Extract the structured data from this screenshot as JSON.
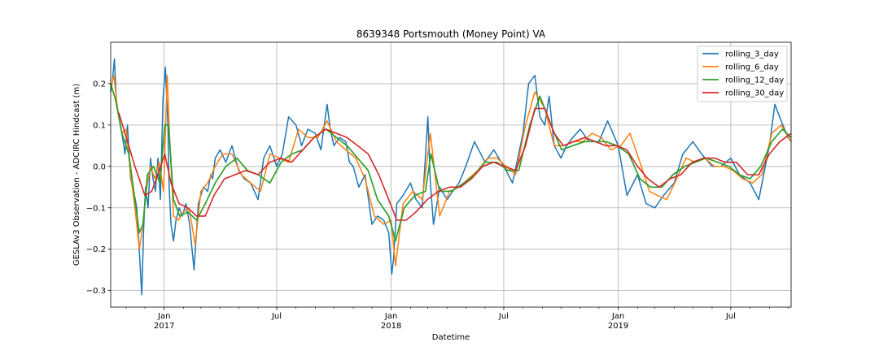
{
  "chart_data": {
    "type": "line",
    "title": "8639348 Portsmouth (Money Point) VA",
    "xlabel": "Datetime",
    "ylabel": "GESLAv3 Observation - ADCIRC Hindcast (m)",
    "grid": true,
    "legend_position": "top-right",
    "xlim": [
      "2016-10-07",
      "2019-10-06"
    ],
    "ylim": [
      -0.34,
      0.3
    ],
    "yticks": [
      -0.3,
      -0.2,
      -0.1,
      0.0,
      0.1,
      0.2
    ],
    "ytick_labels": [
      "−0.3",
      "−0.2",
      "−0.1",
      "0.0",
      "0.1",
      "0.2"
    ],
    "xticks": [
      {
        "date": "2017-01-01",
        "label": "Jan",
        "sublabel": "2017"
      },
      {
        "date": "2017-07-01",
        "label": "Jul",
        "sublabel": ""
      },
      {
        "date": "2018-01-01",
        "label": "Jan",
        "sublabel": "2018"
      },
      {
        "date": "2018-07-01",
        "label": "Jul",
        "sublabel": ""
      },
      {
        "date": "2019-01-01",
        "label": "Jan",
        "sublabel": "2019"
      },
      {
        "date": "2019-07-01",
        "label": "Jul",
        "sublabel": ""
      }
    ],
    "series": [
      {
        "name": "rolling_3_day",
        "color": "#1f77b4",
        "x": [
          "2016-10-07",
          "2016-10-10",
          "2016-10-13",
          "2016-10-16",
          "2016-10-20",
          "2016-10-25",
          "2016-10-30",
          "2016-11-03",
          "2016-11-08",
          "2016-11-13",
          "2016-11-18",
          "2016-11-23",
          "2016-11-26",
          "2016-11-29",
          "2016-12-02",
          "2016-12-06",
          "2016-12-10",
          "2016-12-14",
          "2016-12-18",
          "2016-12-22",
          "2016-12-26",
          "2016-12-30",
          "2017-01-03",
          "2017-01-07",
          "2017-01-09",
          "2017-01-12",
          "2017-01-16",
          "2017-01-20",
          "2017-01-25",
          "2017-01-30",
          "2017-02-05",
          "2017-02-11",
          "2017-02-18",
          "2017-02-25",
          "2017-03-05",
          "2017-03-12",
          "2017-03-17",
          "2017-03-20",
          "2017-03-24",
          "2017-04-01",
          "2017-04-10",
          "2017-04-20",
          "2017-05-01",
          "2017-05-10",
          "2017-05-20",
          "2017-06-01",
          "2017-06-10",
          "2017-06-20",
          "2017-07-01",
          "2017-07-10",
          "2017-07-20",
          "2017-08-01",
          "2017-08-10",
          "2017-08-20",
          "2017-09-01",
          "2017-09-10",
          "2017-09-20",
          "2017-09-25",
          "2017-10-01",
          "2017-10-10",
          "2017-10-20",
          "2017-10-26",
          "2017-11-01",
          "2017-11-10",
          "2017-11-20",
          "2017-12-01",
          "2017-12-10",
          "2017-12-20",
          "2017-12-28",
          "2018-01-02",
          "2018-01-05",
          "2018-01-10",
          "2018-01-20",
          "2018-02-01",
          "2018-02-10",
          "2018-02-20",
          "2018-03-01",
          "2018-03-05",
          "2018-03-10",
          "2018-03-20",
          "2018-04-01",
          "2018-04-10",
          "2018-04-20",
          "2018-05-01",
          "2018-05-15",
          "2018-06-01",
          "2018-06-15",
          "2018-07-01",
          "2018-07-15",
          "2018-08-01",
          "2018-08-10",
          "2018-08-20",
          "2018-08-28",
          "2018-09-05",
          "2018-09-12",
          "2018-09-20",
          "2018-10-01",
          "2018-10-10",
          "2018-10-20",
          "2018-11-01",
          "2018-11-15",
          "2018-12-01",
          "2018-12-15",
          "2019-01-01",
          "2019-01-15",
          "2019-02-01",
          "2019-02-15",
          "2019-03-01",
          "2019-03-15",
          "2019-04-01",
          "2019-04-15",
          "2019-05-01",
          "2019-05-15",
          "2019-06-01",
          "2019-06-15",
          "2019-07-01",
          "2019-07-15",
          "2019-08-01",
          "2019-08-15",
          "2019-09-01",
          "2019-09-10",
          "2019-09-20",
          "2019-10-01",
          "2019-10-06"
        ],
        "values": [
          0.18,
          0.21,
          0.26,
          0.16,
          0.12,
          0.08,
          0.03,
          0.1,
          -0.03,
          -0.06,
          -0.1,
          -0.23,
          -0.31,
          -0.15,
          -0.05,
          -0.1,
          0.02,
          -0.03,
          -0.06,
          0.02,
          -0.08,
          0.16,
          0.24,
          0.1,
          -0.05,
          -0.14,
          -0.18,
          -0.13,
          -0.1,
          -0.12,
          -0.09,
          -0.14,
          -0.25,
          -0.09,
          -0.05,
          -0.06,
          -0.02,
          -0.03,
          0.02,
          0.04,
          0.01,
          0.05,
          -0.01,
          -0.03,
          -0.04,
          -0.08,
          0.02,
          0.05,
          0.0,
          0.03,
          0.12,
          0.1,
          0.05,
          0.09,
          0.08,
          0.04,
          0.15,
          0.09,
          0.05,
          0.07,
          0.06,
          0.01,
          0.0,
          -0.05,
          -0.02,
          -0.14,
          -0.12,
          -0.13,
          -0.16,
          -0.26,
          -0.22,
          -0.09,
          -0.07,
          -0.04,
          -0.08,
          -0.1,
          0.12,
          -0.04,
          -0.14,
          -0.05,
          -0.08,
          -0.06,
          -0.04,
          0.0,
          0.06,
          0.01,
          0.04,
          0.0,
          -0.04,
          0.08,
          0.2,
          0.22,
          0.12,
          0.1,
          0.17,
          0.05,
          0.02,
          0.05,
          0.07,
          0.09,
          0.06,
          0.06,
          0.11,
          0.05,
          -0.07,
          -0.02,
          -0.09,
          -0.1,
          -0.07,
          -0.04,
          0.03,
          0.06,
          0.03,
          0.0,
          0.0,
          0.02,
          -0.02,
          -0.04,
          -0.08,
          0.05,
          0.15,
          0.11,
          0.07,
          0.06
        ]
      },
      {
        "name": "rolling_6_day",
        "color": "#ff7f0e",
        "x": [
          "2016-10-07",
          "2016-10-12",
          "2016-10-18",
          "2016-10-25",
          "2016-11-01",
          "2016-11-08",
          "2016-11-15",
          "2016-11-22",
          "2016-11-27",
          "2016-12-03",
          "2016-12-10",
          "2016-12-17",
          "2016-12-24",
          "2016-12-31",
          "2017-01-06",
          "2017-01-10",
          "2017-01-16",
          "2017-01-24",
          "2017-02-01",
          "2017-02-10",
          "2017-02-20",
          "2017-03-01",
          "2017-03-12",
          "2017-03-24",
          "2017-04-05",
          "2017-04-20",
          "2017-05-05",
          "2017-05-20",
          "2017-06-05",
          "2017-06-20",
          "2017-07-05",
          "2017-07-20",
          "2017-08-05",
          "2017-08-20",
          "2017-09-05",
          "2017-09-20",
          "2017-10-05",
          "2017-10-20",
          "2017-11-05",
          "2017-11-20",
          "2017-12-05",
          "2017-12-20",
          "2018-01-01",
          "2018-01-08",
          "2018-01-20",
          "2018-02-05",
          "2018-02-20",
          "2018-03-05",
          "2018-03-20",
          "2018-04-05",
          "2018-04-20",
          "2018-05-05",
          "2018-05-20",
          "2018-06-05",
          "2018-06-20",
          "2018-07-05",
          "2018-07-20",
          "2018-08-05",
          "2018-08-20",
          "2018-09-05",
          "2018-09-20",
          "2018-10-05",
          "2018-10-20",
          "2018-11-05",
          "2018-11-20",
          "2018-12-05",
          "2018-12-20",
          "2019-01-05",
          "2019-01-20",
          "2019-02-05",
          "2019-02-20",
          "2019-03-05",
          "2019-03-20",
          "2019-04-05",
          "2019-04-20",
          "2019-05-05",
          "2019-05-20",
          "2019-06-05",
          "2019-06-20",
          "2019-07-05",
          "2019-07-20",
          "2019-08-05",
          "2019-08-20",
          "2019-09-05",
          "2019-09-20",
          "2019-10-06"
        ],
        "values": [
          0.19,
          0.22,
          0.14,
          0.08,
          0.09,
          -0.02,
          -0.1,
          -0.2,
          -0.15,
          -0.06,
          0.0,
          -0.03,
          0.01,
          -0.06,
          0.22,
          0.06,
          -0.12,
          -0.13,
          -0.11,
          -0.1,
          -0.19,
          -0.06,
          -0.04,
          0.0,
          0.03,
          0.03,
          -0.02,
          -0.04,
          -0.06,
          0.03,
          0.02,
          0.01,
          0.09,
          0.07,
          0.07,
          0.11,
          0.06,
          0.04,
          0.02,
          -0.03,
          -0.12,
          -0.14,
          -0.13,
          -0.24,
          -0.09,
          -0.06,
          -0.08,
          0.08,
          -0.12,
          -0.06,
          -0.05,
          -0.03,
          -0.01,
          0.02,
          0.02,
          0.0,
          -0.02,
          0.1,
          0.18,
          0.14,
          0.05,
          0.05,
          0.06,
          0.06,
          0.08,
          0.07,
          0.04,
          0.05,
          0.08,
          0.01,
          -0.06,
          -0.07,
          -0.08,
          -0.03,
          0.02,
          0.01,
          0.02,
          0.0,
          0.0,
          -0.01,
          -0.03,
          -0.04,
          -0.02,
          0.08,
          0.1,
          0.06
        ]
      },
      {
        "name": "rolling_12_day",
        "color": "#2ca02c",
        "x": [
          "2016-10-07",
          "2016-10-15",
          "2016-10-25",
          "2016-11-05",
          "2016-11-15",
          "2016-11-22",
          "2016-11-28",
          "2016-12-05",
          "2016-12-15",
          "2016-12-25",
          "2017-01-02",
          "2017-01-08",
          "2017-01-16",
          "2017-01-26",
          "2017-02-08",
          "2017-02-22",
          "2017-03-08",
          "2017-03-24",
          "2017-04-10",
          "2017-04-28",
          "2017-05-15",
          "2017-06-01",
          "2017-06-20",
          "2017-07-08",
          "2017-07-25",
          "2017-08-12",
          "2017-08-30",
          "2017-09-18",
          "2017-10-05",
          "2017-10-22",
          "2017-11-08",
          "2017-11-25",
          "2017-12-10",
          "2017-12-28",
          "2018-01-08",
          "2018-01-22",
          "2018-02-08",
          "2018-02-25",
          "2018-03-06",
          "2018-03-20",
          "2018-04-08",
          "2018-04-28",
          "2018-05-15",
          "2018-06-01",
          "2018-06-20",
          "2018-07-08",
          "2018-07-25",
          "2018-08-12",
          "2018-08-28",
          "2018-09-15",
          "2018-10-02",
          "2018-10-20",
          "2018-11-08",
          "2018-11-25",
          "2018-12-12",
          "2018-12-30",
          "2019-01-18",
          "2019-02-05",
          "2019-02-22",
          "2019-03-12",
          "2019-03-30",
          "2019-04-18",
          "2019-05-05",
          "2019-05-22",
          "2019-06-10",
          "2019-06-28",
          "2019-07-15",
          "2019-08-01",
          "2019-08-18",
          "2019-09-05",
          "2019-09-22",
          "2019-10-06"
        ],
        "values": [
          0.2,
          0.16,
          0.08,
          0.03,
          -0.08,
          -0.16,
          -0.14,
          -0.02,
          0.0,
          -0.04,
          0.1,
          0.1,
          -0.08,
          -0.12,
          -0.11,
          -0.13,
          -0.09,
          -0.04,
          0.0,
          0.02,
          -0.01,
          -0.02,
          -0.04,
          0.01,
          0.03,
          0.04,
          0.07,
          0.09,
          0.07,
          0.05,
          0.02,
          -0.01,
          -0.08,
          -0.12,
          -0.18,
          -0.1,
          -0.07,
          -0.06,
          0.03,
          -0.06,
          -0.06,
          -0.04,
          -0.02,
          0.01,
          0.01,
          -0.01,
          -0.01,
          0.1,
          0.17,
          0.1,
          0.04,
          0.05,
          0.06,
          0.06,
          0.06,
          0.05,
          0.03,
          -0.03,
          -0.05,
          -0.05,
          -0.02,
          0.0,
          0.01,
          0.02,
          0.01,
          0.0,
          -0.02,
          -0.03,
          0.0,
          0.06,
          0.09,
          0.07
        ]
      },
      {
        "name": "rolling_30_day",
        "color": "#d62728",
        "x": [
          "2016-10-20",
          "2016-11-01",
          "2016-11-15",
          "2016-12-01",
          "2016-12-12",
          "2016-12-22",
          "2017-01-02",
          "2017-01-12",
          "2017-01-25",
          "2017-02-08",
          "2017-02-22",
          "2017-03-08",
          "2017-03-22",
          "2017-04-08",
          "2017-04-25",
          "2017-05-12",
          "2017-06-01",
          "2017-06-20",
          "2017-07-08",
          "2017-07-25",
          "2017-08-12",
          "2017-08-30",
          "2017-09-18",
          "2017-10-05",
          "2017-10-22",
          "2017-11-08",
          "2017-11-25",
          "2017-12-12",
          "2017-12-28",
          "2018-01-10",
          "2018-01-25",
          "2018-02-10",
          "2018-02-28",
          "2018-03-18",
          "2018-04-05",
          "2018-04-22",
          "2018-05-10",
          "2018-05-28",
          "2018-06-15",
          "2018-07-02",
          "2018-07-20",
          "2018-08-05",
          "2018-08-20",
          "2018-09-05",
          "2018-09-20",
          "2018-10-05",
          "2018-10-22",
          "2018-11-08",
          "2018-11-25",
          "2018-12-12",
          "2018-12-30",
          "2019-01-15",
          "2019-02-01",
          "2019-02-18",
          "2019-03-08",
          "2019-03-25",
          "2019-04-12",
          "2019-04-30",
          "2019-05-18",
          "2019-06-05",
          "2019-06-22",
          "2019-07-10",
          "2019-07-28",
          "2019-08-15",
          "2019-09-01",
          "2019-09-18",
          "2019-10-06"
        ],
        "values": [
          0.13,
          0.07,
          0.0,
          -0.07,
          -0.06,
          -0.02,
          0.03,
          -0.04,
          -0.09,
          -0.1,
          -0.12,
          -0.12,
          -0.07,
          -0.03,
          -0.02,
          -0.01,
          -0.02,
          0.01,
          0.02,
          0.01,
          0.04,
          0.07,
          0.09,
          0.08,
          0.07,
          0.05,
          0.03,
          -0.02,
          -0.08,
          -0.13,
          -0.13,
          -0.11,
          -0.08,
          -0.06,
          -0.05,
          -0.05,
          -0.03,
          0.0,
          0.01,
          0.0,
          -0.01,
          0.05,
          0.14,
          0.14,
          0.08,
          0.05,
          0.06,
          0.07,
          0.06,
          0.05,
          0.05,
          0.04,
          0.0,
          -0.03,
          -0.05,
          -0.03,
          -0.02,
          0.01,
          0.02,
          0.02,
          0.01,
          0.01,
          -0.02,
          -0.02,
          0.03,
          0.06,
          0.08
        ]
      }
    ]
  }
}
